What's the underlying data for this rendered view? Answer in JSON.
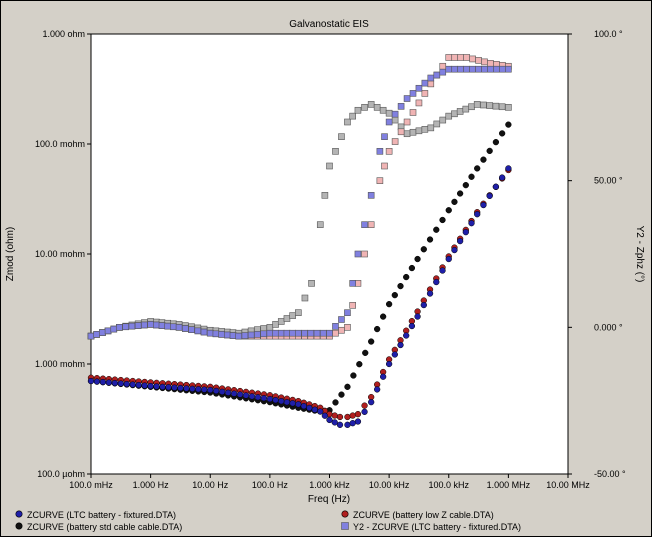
{
  "chart_data": {
    "type": "scatter",
    "title": "Galvanostatic EIS",
    "xlabel": "Freq (Hz)",
    "ylabel": "Zmod (ohm)",
    "y2label": "Y2 - Zphz (°)",
    "x_scale": "log",
    "y_scale": "log",
    "xlim": [
      0.1,
      10000000
    ],
    "ylim": [
      0.0001,
      1
    ],
    "y2lim": [
      -50,
      100
    ],
    "x_ticks": [
      {
        "value": 0.1,
        "label": "100.0 mHz"
      },
      {
        "value": 1,
        "label": "1.000 Hz"
      },
      {
        "value": 10,
        "label": "10.00 Hz"
      },
      {
        "value": 100,
        "label": "100.0 Hz"
      },
      {
        "value": 1000,
        "label": "1.000 kHz"
      },
      {
        "value": 10000,
        "label": "10.00 kHz"
      },
      {
        "value": 100000,
        "label": "100.0 kHz"
      },
      {
        "value": 1000000,
        "label": "1.000 MHz"
      },
      {
        "value": 10000000,
        "label": "10.00 MHz"
      }
    ],
    "y_ticks": [
      {
        "value": 1,
        "label": "1.000 ohm"
      },
      {
        "value": 0.1,
        "label": "100.0 mohm"
      },
      {
        "value": 0.01,
        "label": "10.00 mohm"
      },
      {
        "value": 0.001,
        "label": "1.000 mohm"
      },
      {
        "value": 0.0001,
        "label": "100.0 µohm"
      }
    ],
    "y2_ticks": [
      {
        "value": 100,
        "label": "100.0 °"
      },
      {
        "value": 50,
        "label": "50.00 °"
      },
      {
        "value": 0,
        "label": "0.000 °"
      },
      {
        "value": -50,
        "label": "-50.00 °"
      }
    ],
    "grid": false,
    "legend_position": "bottom",
    "series": [
      {
        "name": "ZCURVE (LTC battery - fixtured.DTA)",
        "axis": "y",
        "marker": "circle",
        "color": "#1f1fa8",
        "x": [
          0.1,
          1,
          10,
          100,
          300,
          700,
          1000,
          1500,
          2000,
          3000,
          5000,
          10000,
          30000,
          100000,
          300000,
          1000000
        ],
        "y": [
          0.0007,
          0.00063,
          0.00058,
          0.00048,
          0.00043,
          0.00037,
          0.00031,
          0.00028,
          0.00028,
          0.0003,
          0.00045,
          0.001,
          0.0027,
          0.009,
          0.023,
          0.06
        ]
      },
      {
        "name": "ZCURVE (battery low Z cable.DTA)",
        "axis": "y",
        "marker": "circle",
        "color": "#b01f1f",
        "x": [
          0.1,
          1,
          10,
          100,
          300,
          700,
          1000,
          1500,
          2000,
          3000,
          5000,
          10000,
          30000,
          100000,
          300000,
          1000000
        ],
        "y": [
          0.00075,
          0.00068,
          0.00062,
          0.00052,
          0.00046,
          0.0004,
          0.00035,
          0.00033,
          0.00033,
          0.00035,
          0.0005,
          0.0011,
          0.003,
          0.0095,
          0.024,
          0.058
        ]
      },
      {
        "name": "ZCURVE (battery std cable cable.DTA)",
        "axis": "y",
        "marker": "circle",
        "color": "#111111",
        "x": [
          0.1,
          1,
          10,
          100,
          300,
          700,
          1000,
          2000,
          5000,
          10000,
          30000,
          100000,
          300000,
          1000000
        ],
        "y": [
          0.0007,
          0.00062,
          0.00055,
          0.00045,
          0.0004,
          0.00037,
          0.00038,
          0.00062,
          0.0016,
          0.0035,
          0.009,
          0.025,
          0.06,
          0.15
        ]
      },
      {
        "name": "Y2 - ZCURVE (LTC battery - fixtured.DTA)",
        "axis": "y2",
        "marker": "square",
        "color": "#8080e0",
        "x": [
          0.1,
          0.3,
          1,
          3,
          10,
          30,
          100,
          300,
          1000,
          2000,
          3000,
          5000,
          7000,
          10000,
          20000,
          50000,
          100000,
          200000,
          500000,
          1000000
        ],
        "y": [
          -3,
          0,
          1,
          0,
          -2,
          -3,
          -2,
          -2,
          -2,
          5,
          25,
          45,
          60,
          70,
          78,
          85,
          88,
          88,
          88,
          88
        ]
      },
      {
        "name": "Y2 - ZCURVE (battery low Z cable.DTA)",
        "axis": "y2",
        "marker": "square",
        "color": "#f0b4b4",
        "x": [
          0.1,
          0.3,
          1,
          3,
          10,
          30,
          100,
          300,
          1000,
          2000,
          3000,
          5000,
          7000,
          10000,
          20000,
          50000,
          100000,
          200000,
          500000,
          1000000
        ],
        "y": [
          -3,
          0,
          1,
          0,
          -2,
          -3,
          -3,
          -3,
          -3,
          0,
          15,
          35,
          50,
          60,
          70,
          83,
          92,
          92,
          90,
          89
        ]
      },
      {
        "name": "Y2 - ZCURVE (battery std cable cable.DTA)",
        "axis": "y2",
        "marker": "square",
        "color": "#b4b4b4",
        "x": [
          0.1,
          0.3,
          1,
          3,
          10,
          30,
          100,
          300,
          500,
          700,
          1000,
          2000,
          3000,
          5000,
          10000,
          20000,
          50000,
          100000,
          300000,
          1000000
        ],
        "y": [
          -3,
          0,
          2,
          1,
          -1,
          -2,
          0,
          5,
          15,
          35,
          55,
          70,
          74,
          76,
          73,
          66,
          68,
          72,
          76,
          75
        ]
      }
    ]
  }
}
